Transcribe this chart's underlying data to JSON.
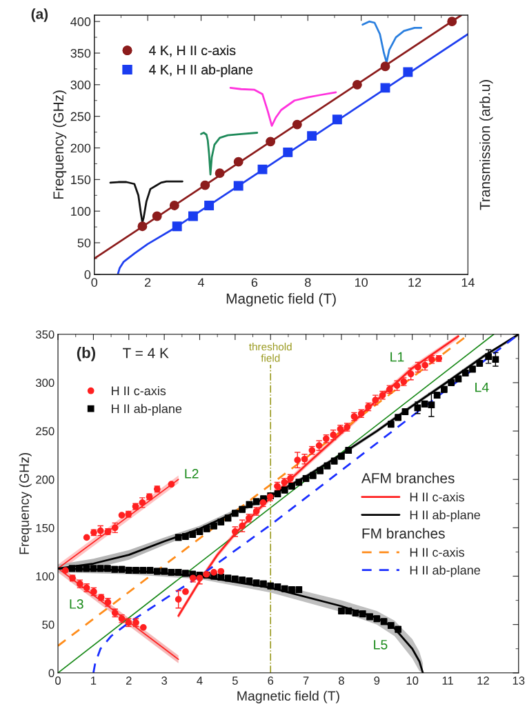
{
  "chart_data": [
    {
      "type": "scatter",
      "title": "(a)",
      "xlabel": "Magnetic field (T)",
      "ylabel": "Frequency (GHz)",
      "y2label": "Transmission (arb.u)",
      "xlim": [
        0,
        14
      ],
      "xticks": [
        0,
        2,
        4,
        6,
        8,
        10,
        12,
        14
      ],
      "ylim": [
        0,
        410
      ],
      "yticks": [
        0,
        50,
        100,
        150,
        200,
        250,
        300,
        350,
        400
      ],
      "grid": false,
      "legend": "top left",
      "series": [
        {
          "type": "line",
          "color": "#8c1c1c",
          "x": [
            0,
            13.75
          ],
          "values": [
            25,
            410
          ]
        },
        {
          "type": "line",
          "color": "#1f3ff0",
          "x": [
            0.88,
            0.95,
            1.1,
            1.5,
            2,
            3,
            14
          ],
          "values": [
            0,
            10,
            20,
            33,
            48,
            73,
            380
          ]
        },
        {
          "type": "line",
          "color": "#111111",
          "x": [
            0.6,
            0.9,
            1.2,
            1.5,
            1.65,
            1.75,
            1.8,
            1.85,
            1.95,
            2.1,
            2.3,
            2.5,
            2.7,
            3.0,
            3.3
          ],
          "values": [
            145,
            146,
            146,
            143,
            125,
            95,
            82,
            90,
            115,
            135,
            140,
            145,
            147,
            147,
            147
          ]
        },
        {
          "type": "line",
          "color": "#1f8a5a",
          "x": [
            4.0,
            4.1,
            4.2,
            4.25,
            4.3,
            4.35,
            4.4,
            4.5,
            4.7,
            5.0,
            5.5,
            6.1
          ],
          "values": [
            222,
            224,
            221,
            212,
            190,
            158,
            185,
            205,
            216,
            220,
            222,
            224
          ]
        },
        {
          "type": "line",
          "color": "#ff33dd",
          "x": [
            5.1,
            5.5,
            6.0,
            6.3,
            6.5,
            6.65,
            6.8,
            7.0,
            7.5,
            8.0,
            8.5,
            9.05
          ],
          "values": [
            295,
            293,
            292,
            285,
            258,
            235,
            248,
            260,
            275,
            280,
            284,
            288
          ]
        },
        {
          "type": "line",
          "color": "#2a7fdf",
          "x": [
            10.05,
            10.3,
            10.5,
            10.7,
            10.85,
            10.95,
            11.05,
            11.3,
            11.6,
            12.0,
            12.25
          ],
          "values": [
            395,
            400,
            398,
            380,
            350,
            335,
            355,
            375,
            385,
            390,
            390
          ]
        },
        {
          "name": "4 K, H II c-axis",
          "color": "#8c1c1c",
          "marker": "circle",
          "x": [
            1.8,
            2.35,
            3.0,
            4.15,
            4.7,
            5.4,
            6.6,
            7.6,
            9.85,
            10.9,
            13.4
          ],
          "values": [
            76,
            92,
            109,
            141,
            160,
            178,
            210,
            237,
            300,
            329,
            400
          ]
        },
        {
          "name": "4 K, H II ab-plane",
          "color": "#1a3cf0",
          "marker": "square",
          "x": [
            3.1,
            3.7,
            4.3,
            5.4,
            6.3,
            7.25,
            8.15,
            9.1,
            10.9,
            11.75
          ],
          "values": [
            76,
            92,
            109,
            140,
            166,
            193,
            219,
            245,
            295,
            320
          ]
        }
      ]
    },
    {
      "type": "scatter",
      "xlabel": "Magnetic field (T)",
      "ylabel": "Frequency (GHz)",
      "xlim": [
        0,
        13
      ],
      "xticks": [
        0,
        1,
        2,
        3,
        4,
        5,
        6,
        7,
        8,
        9,
        10,
        11,
        12,
        13
      ],
      "ylim": [
        0,
        350
      ],
      "yticks": [
        0,
        50,
        100,
        150,
        200,
        250,
        300,
        350
      ],
      "grid": false,
      "legend": "top left",
      "annotations": [
        "AFM branches",
        "FM branches",
        "(b)",
        "T = 4 K",
        "L1",
        "L2",
        "L3",
        "L4",
        "L5"
      ],
      "ref_lines": [
        {
          "axis": "x",
          "value": 6,
          "label": "threshold\nfield",
          "color": "#9a9a20",
          "line_style": "dashdot"
        }
      ],
      "series": [
        {
          "type": "line",
          "color": "#1a8a1a",
          "x": [
            0,
            12.3
          ],
          "values": [
            0,
            350
          ]
        },
        {
          "type": "line",
          "color": "#ff2020",
          "x": [
            0,
            3.4
          ],
          "values": [
            108,
            200
          ],
          "lower": [
            104,
            196
          ],
          "upper": [
            112,
            204
          ]
        },
        {
          "type": "line",
          "color": "#ff2020",
          "x": [
            0,
            3.4
          ],
          "values": [
            108,
            14
          ],
          "lower": [
            104,
            10
          ],
          "upper": [
            112,
            18
          ]
        },
        {
          "type": "line",
          "name": "H II c-axis",
          "color": "#ff2020",
          "x": [
            3.4,
            4,
            4.5,
            5,
            5.5,
            6,
            7,
            8,
            9,
            10,
            11.3
          ],
          "values": [
            59,
            95,
            122,
            144,
            163,
            181,
            215,
            248,
            282,
            315,
            348
          ],
          "lower": [
            56,
            92,
            119,
            141,
            160,
            178,
            212,
            245,
            279,
            312,
            345
          ],
          "upper": [
            62,
            98,
            125,
            147,
            166,
            184,
            218,
            251,
            285,
            318,
            350
          ]
        },
        {
          "type": "line",
          "name": "H II ab-plane",
          "color": "#000000",
          "x": [
            0,
            1,
            2,
            3,
            4,
            5,
            6,
            7,
            8,
            9,
            10,
            11,
            12,
            13
          ],
          "values": [
            108,
            113,
            122,
            136,
            149,
            166,
            183,
            203,
            226,
            250,
            276,
            301,
            327,
            350
          ],
          "lower": [
            104,
            108,
            117,
            132,
            146,
            163,
            181,
            201,
            224,
            248,
            274,
            299,
            325,
            348
          ],
          "upper": [
            112,
            118,
            127,
            140,
            152,
            169,
            185,
            205,
            228,
            252,
            278,
            303,
            329,
            350
          ]
        },
        {
          "type": "line",
          "color": "#000000",
          "x": [
            0,
            2,
            4,
            6,
            8,
            9,
            9.5,
            10,
            10.2,
            10.3
          ],
          "values": [
            108,
            106,
            100,
            88,
            69,
            57,
            46,
            25,
            12,
            0
          ],
          "lower": [
            104,
            102,
            97,
            83,
            63,
            50,
            38,
            15,
            2,
            0
          ],
          "upper": [
            112,
            110,
            104,
            93,
            75,
            64,
            54,
            35,
            22,
            10
          ]
        },
        {
          "type": "line",
          "name": "H II c-axis",
          "color": "#ff8c1a",
          "line_style": "dashed",
          "x": [
            0,
            11.6
          ],
          "values": [
            28,
            350
          ]
        },
        {
          "type": "line",
          "name": "H II ab-plane",
          "color": "#1a2eff",
          "line_style": "dashed",
          "x": [
            1.0,
            1.05,
            1.2,
            1.5,
            2,
            3,
            4,
            6,
            13
          ],
          "values": [
            0,
            10,
            25,
            38,
            52,
            76,
            100,
            153,
            350
          ]
        },
        {
          "name": "H II c-axis",
          "color": "#ff2020",
          "marker": "circle",
          "x": [
            0.81,
            1.01,
            1.2,
            1.41,
            1.61,
            1.8,
            1.99,
            2.19,
            2.38,
            2.58,
            2.8,
            3.2,
            0.21,
            0.41,
            0.62,
            0.81,
            1.01,
            1.22,
            1.41,
            1.61,
            1.8,
            1.99,
            2.2,
            2.41,
            3.4,
            3.6,
            3.81,
            4.0,
            4.19,
            4.4,
            4.6,
            5.0,
            5.2,
            5.39,
            5.6,
            5.79,
            5.99,
            6.19,
            6.39,
            6.56,
            6.76,
            6.96,
            7.17,
            7.37,
            7.57,
            7.77,
            7.97,
            8.16,
            8.36,
            8.56,
            8.76,
            8.96,
            9.16,
            9.36,
            9.57,
            9.76,
            9.96,
            10.16,
            10.36,
            10.55,
            10.75
          ],
          "values": [
            140,
            145,
            147,
            146,
            150,
            163,
            164,
            172,
            176,
            182,
            190,
            195,
            106,
            98,
            92,
            88,
            84,
            78,
            73,
            62,
            56,
            52,
            52,
            47,
            76,
            84,
            98,
            98,
            102,
            104,
            105,
            146,
            152,
            160,
            167,
            176,
            182,
            193,
            197,
            201,
            220,
            221,
            230,
            235,
            242,
            246,
            252,
            254,
            265,
            268,
            275,
            282,
            287,
            293,
            297,
            301,
            309,
            316,
            318,
            324,
            325
          ],
          "errors": [
            null,
            3,
            5,
            3,
            5,
            null,
            3,
            3,
            5,
            3,
            3,
            null,
            null,
            3,
            4,
            4,
            4,
            3,
            4,
            4,
            4,
            4,
            4,
            null,
            9,
            null,
            4,
            6,
            null,
            null,
            null,
            5,
            6,
            4,
            4,
            4,
            4,
            4,
            4,
            4,
            8,
            5,
            4,
            5,
            4,
            5,
            4,
            4,
            4,
            4,
            4,
            5,
            4,
            4,
            5,
            4,
            6,
            5,
            5,
            4,
            3
          ]
        },
        {
          "name": "H II ab-plane",
          "color": "#000000",
          "marker": "square",
          "x": [
            0.4,
            0.6,
            0.8,
            1.0,
            1.2,
            1.4,
            1.6,
            1.8,
            2.0,
            2.2,
            2.4,
            2.6,
            2.8,
            3.0,
            3.2,
            3.4,
            3.6,
            3.8,
            4.0,
            4.2,
            4.4,
            4.6,
            4.8,
            5.0,
            5.2,
            5.4,
            5.6,
            5.8,
            6.0,
            6.2,
            6.4,
            6.6,
            6.8,
            8.0,
            8.2,
            8.4,
            8.6,
            8.8,
            9.0,
            9.2,
            9.4,
            9.6,
            3.4,
            3.6,
            3.8,
            4.0,
            4.2,
            4.4,
            4.6,
            4.8,
            5.0,
            5.2,
            5.4,
            5.6,
            5.8,
            6.0,
            6.2,
            6.4,
            6.6,
            6.8,
            7.0,
            7.2,
            7.4,
            7.6,
            7.8,
            8.0,
            8.2,
            9.4,
            9.6,
            9.8,
            10.15,
            10.35,
            10.54,
            10.7,
            10.9,
            11.1,
            11.3,
            11.5,
            11.7,
            11.9,
            12.15,
            12.35
          ],
          "values": [
            108,
            108,
            108,
            108,
            108,
            108,
            107,
            107,
            106,
            106,
            106,
            106,
            105,
            105,
            104,
            104,
            103,
            102,
            101,
            101,
            100,
            99,
            98,
            97,
            96,
            95,
            93,
            92,
            90,
            89,
            87,
            86,
            86,
            64,
            64,
            62,
            61,
            58,
            56,
            53,
            49,
            45,
            140,
            141,
            143,
            146,
            149,
            152,
            156,
            160,
            165,
            169,
            174,
            177,
            180,
            183,
            185,
            189,
            193,
            197,
            201,
            204,
            209,
            214,
            219,
            224,
            230,
            257,
            264,
            270,
            274,
            278,
            277,
            287,
            293,
            300,
            304,
            310,
            314,
            320,
            327,
            324
          ],
          "errors": [
            3,
            3,
            3,
            3,
            3,
            3,
            3,
            3,
            3,
            3,
            3,
            3,
            3,
            3,
            3,
            3,
            3,
            3,
            3,
            3,
            3,
            3,
            3,
            3,
            3,
            3,
            3,
            3,
            3,
            3,
            3,
            3,
            3,
            3,
            3,
            3,
            3,
            3,
            3,
            3,
            3,
            3,
            3,
            3,
            3,
            3,
            3,
            3,
            3,
            3,
            3,
            3,
            3,
            3,
            3,
            3,
            3,
            3,
            3,
            3,
            3,
            3,
            3,
            3,
            3,
            3,
            3,
            3,
            3,
            3,
            6,
            3,
            12,
            3,
            3,
            3,
            3,
            3,
            3,
            3,
            7,
            7
          ]
        }
      ]
    }
  ]
}
